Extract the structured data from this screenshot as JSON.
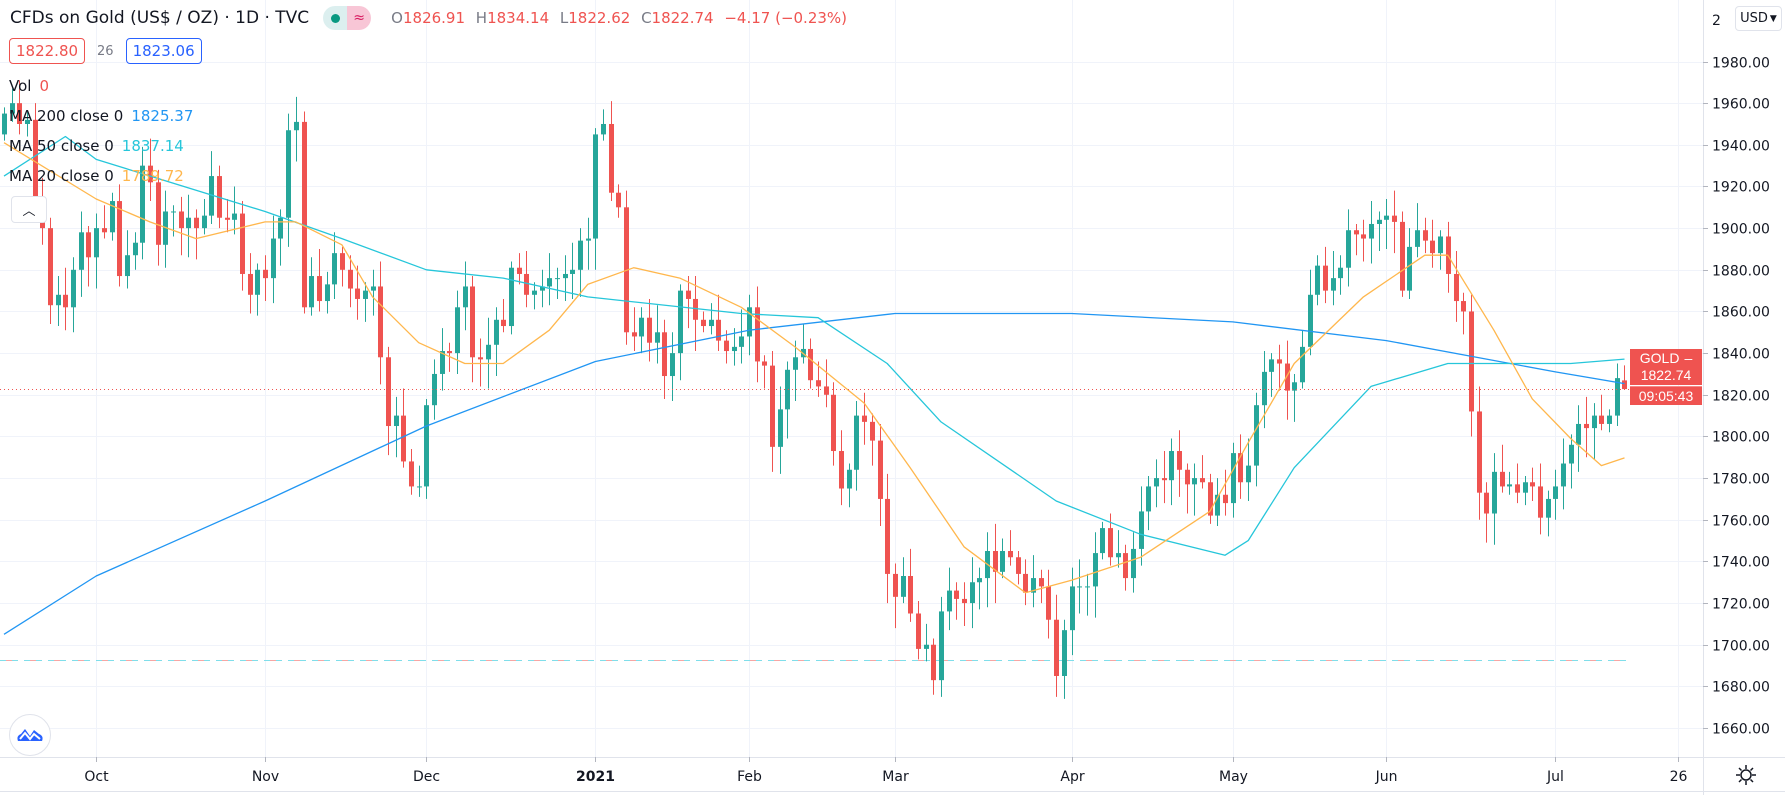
{
  "header": {
    "title": "CFDs on Gold (US$ / OZ) · 1D · TVC",
    "ohlc": {
      "o_label": "O",
      "o": "1826.91",
      "h_label": "H",
      "h": "1834.14",
      "l_label": "L",
      "l": "1822.62",
      "c_label": "C",
      "c": "1822.74",
      "change": "−4.17 (−0.23%)"
    },
    "market_status_icon": "green-dot-icon",
    "indicator_icon": "approx-wave-icon"
  },
  "quote": {
    "bid": "1822.80",
    "spread": "26",
    "ask": "1823.06"
  },
  "legend": {
    "vol": {
      "label": "Vol",
      "value": "0"
    },
    "ma200": {
      "label": "MA 200 close 0",
      "value": "1825.37",
      "color": "#2196f3"
    },
    "ma50": {
      "label": "MA 50 close 0",
      "value": "1837.14",
      "color": "#26c6da"
    },
    "ma20": {
      "label": "MA 20 close 0",
      "value": "1789.72",
      "color": "#ffb74d"
    },
    "collapse_icon": "chevron-up-icon"
  },
  "currency": {
    "label": "USD"
  },
  "price_scale": {
    "partial_top": "2",
    "ticks": [
      "1980.00",
      "1960.00",
      "1940.00",
      "1920.00",
      "1900.00",
      "1880.00",
      "1860.00",
      "1840.00",
      "1820.00",
      "1800.00",
      "1780.00",
      "1760.00",
      "1740.00",
      "1720.00",
      "1700.00",
      "1680.00",
      "1660.00"
    ]
  },
  "last_price": {
    "symbol": "GOLD",
    "value": "1822.74",
    "countdown": "09:05:43"
  },
  "time_scale": {
    "ticks": [
      "Oct",
      "Nov",
      "Dec",
      "2021",
      "Feb",
      "Mar",
      "Apr",
      "May",
      "Jun",
      "Jul",
      "26"
    ]
  },
  "colors": {
    "up": "#26a69a",
    "down": "#ef5350",
    "grid": "#f0f3fa"
  },
  "chart_data": {
    "type": "candlestick",
    "symbol": "GOLD",
    "interval": "1D",
    "ylim": [
      1650,
      2005
    ],
    "grid": true,
    "first_open": 1945,
    "last_bar": {
      "open": 1826.91,
      "high": 1834.14,
      "low": 1822.62,
      "close": 1822.74
    },
    "closes": [
      1955,
      1960,
      1950,
      1952,
      1912,
      1900,
      1863,
      1868,
      1862,
      1880,
      1898,
      1886,
      1900,
      1898,
      1913,
      1877,
      1887,
      1893,
      1930,
      1922,
      1892,
      1908,
      1908,
      1900,
      1905,
      1900,
      1906,
      1925,
      1905,
      1904,
      1907,
      1878,
      1868,
      1880,
      1876,
      1895,
      1905,
      1947,
      1951,
      1862,
      1877,
      1865,
      1873,
      1888,
      1880,
      1871,
      1866,
      1870,
      1872,
      1838,
      1805,
      1810,
      1788,
      1776,
      1776,
      1815,
      1830,
      1841,
      1840,
      1862,
      1872,
      1838,
      1837,
      1844,
      1856,
      1853,
      1881,
      1878,
      1868,
      1870,
      1872,
      1876,
      1876,
      1878,
      1880,
      1894,
      1895,
      1945,
      1950,
      1917,
      1910,
      1850,
      1848,
      1857,
      1845,
      1850,
      1829,
      1840,
      1870,
      1866,
      1856,
      1853,
      1856,
      1846,
      1841,
      1843,
      1848,
      1862,
      1836,
      1834,
      1795,
      1813,
      1832,
      1838,
      1842,
      1827,
      1824,
      1820,
      1793,
      1775,
      1784,
      1810,
      1807,
      1798,
      1770,
      1734,
      1723,
      1733,
      1715,
      1698,
      1700,
      1683,
      1716,
      1726,
      1722,
      1720,
      1730,
      1732,
      1745,
      1735,
      1745,
      1742,
      1734,
      1725,
      1732,
      1728,
      1712,
      1685,
      1707,
      1728,
      1728,
      1728,
      1744,
      1756,
      1742,
      1744,
      1732,
      1746,
      1764,
      1776,
      1780,
      1779,
      1793,
      1784,
      1777,
      1780,
      1778,
      1762,
      1772,
      1768,
      1792,
      1778,
      1786,
      1815,
      1831,
      1837,
      1835,
      1822,
      1826,
      1843,
      1868,
      1882,
      1870,
      1876,
      1881,
      1899,
      1897,
      1895,
      1902,
      1904,
      1906,
      1903,
      1870,
      1891,
      1899,
      1894,
      1888,
      1896,
      1878,
      1865,
      1860,
      1812,
      1773,
      1763,
      1783,
      1776,
      1777,
      1773,
      1778,
      1776,
      1761,
      1770,
      1776,
      1787,
      1796,
      1806,
      1804,
      1810,
      1806,
      1810,
      1828,
      1822.74
    ],
    "series": [
      {
        "name": "MA 200 close 0",
        "color": "#2196f3",
        "points": [
          [
            0,
            1705
          ],
          [
            12,
            1733
          ],
          [
            34,
            1769
          ],
          [
            55,
            1805
          ],
          [
            77,
            1836
          ],
          [
            97,
            1851
          ],
          [
            116,
            1859
          ],
          [
            139,
            1859
          ],
          [
            160,
            1855
          ],
          [
            180,
            1846
          ],
          [
            202,
            1831
          ],
          [
            211,
            1825.37
          ]
        ]
      },
      {
        "name": "MA 50 close 0",
        "color": "#26c6da",
        "points": [
          [
            0,
            1925
          ],
          [
            8,
            1944
          ],
          [
            12,
            1933
          ],
          [
            34,
            1908
          ],
          [
            44,
            1895
          ],
          [
            55,
            1880
          ],
          [
            65,
            1876
          ],
          [
            76,
            1867
          ],
          [
            96,
            1859
          ],
          [
            106,
            1857
          ],
          [
            115,
            1835
          ],
          [
            122,
            1807
          ],
          [
            137,
            1769
          ],
          [
            148,
            1753
          ],
          [
            159,
            1743
          ],
          [
            162,
            1750
          ],
          [
            168,
            1785
          ],
          [
            178,
            1824
          ],
          [
            188,
            1835
          ],
          [
            204,
            1835
          ],
          [
            211,
            1837.14
          ]
        ]
      },
      {
        "name": "MA 20 close 0",
        "color": "#ffb74d",
        "points": [
          [
            0,
            1941
          ],
          [
            12,
            1914
          ],
          [
            19,
            1903
          ],
          [
            25,
            1895
          ],
          [
            34,
            1903
          ],
          [
            38,
            1903
          ],
          [
            44,
            1892
          ],
          [
            48,
            1867
          ],
          [
            54,
            1845
          ],
          [
            60,
            1835
          ],
          [
            65,
            1835
          ],
          [
            71,
            1851
          ],
          [
            76,
            1873
          ],
          [
            82,
            1881
          ],
          [
            88,
            1876
          ],
          [
            96,
            1862
          ],
          [
            103,
            1843
          ],
          [
            112,
            1816
          ],
          [
            118,
            1785
          ],
          [
            125,
            1747
          ],
          [
            133,
            1725
          ],
          [
            139,
            1731
          ],
          [
            148,
            1742
          ],
          [
            157,
            1764
          ],
          [
            162,
            1797
          ],
          [
            168,
            1835
          ],
          [
            177,
            1867
          ],
          [
            185,
            1887
          ],
          [
            188,
            1887
          ],
          [
            194,
            1851
          ],
          [
            199,
            1818
          ],
          [
            204,
            1799
          ],
          [
            208,
            1786
          ],
          [
            211,
            1789.72
          ]
        ]
      }
    ],
    "horizontal_lines": [
      {
        "price": 1692.5,
        "style": "dashed"
      }
    ]
  }
}
